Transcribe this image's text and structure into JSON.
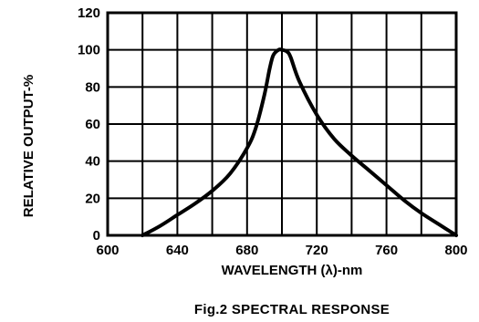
{
  "chart_data": {
    "type": "line",
    "xlabel": "WAVELENGTH (λ)-nm",
    "ylabel": "RELATIVE OUTPUT-%",
    "caption": "Fig.2 SPECTRAL RESPONSE",
    "xlim": [
      600,
      800
    ],
    "ylim": [
      0,
      120
    ],
    "x_ticks": [
      "600",
      "640",
      "680",
      "720",
      "760",
      "800"
    ],
    "y_ticks": [
      "0",
      "20",
      "40",
      "60",
      "80",
      "100",
      "120"
    ],
    "grid": true,
    "series": [
      {
        "x": [
          620,
          630,
          640,
          650,
          660,
          670,
          680,
          685,
          690,
          693,
          695,
          698,
          700,
          703,
          705,
          710,
          720,
          730,
          740,
          750,
          760,
          770,
          780,
          790,
          800
        ],
        "values": [
          0,
          5,
          11,
          17,
          24,
          33,
          47,
          58,
          76,
          90,
          97,
          100,
          100,
          99,
          96,
          83,
          65,
          52,
          43,
          35,
          27,
          19,
          12,
          6,
          0
        ]
      }
    ]
  }
}
